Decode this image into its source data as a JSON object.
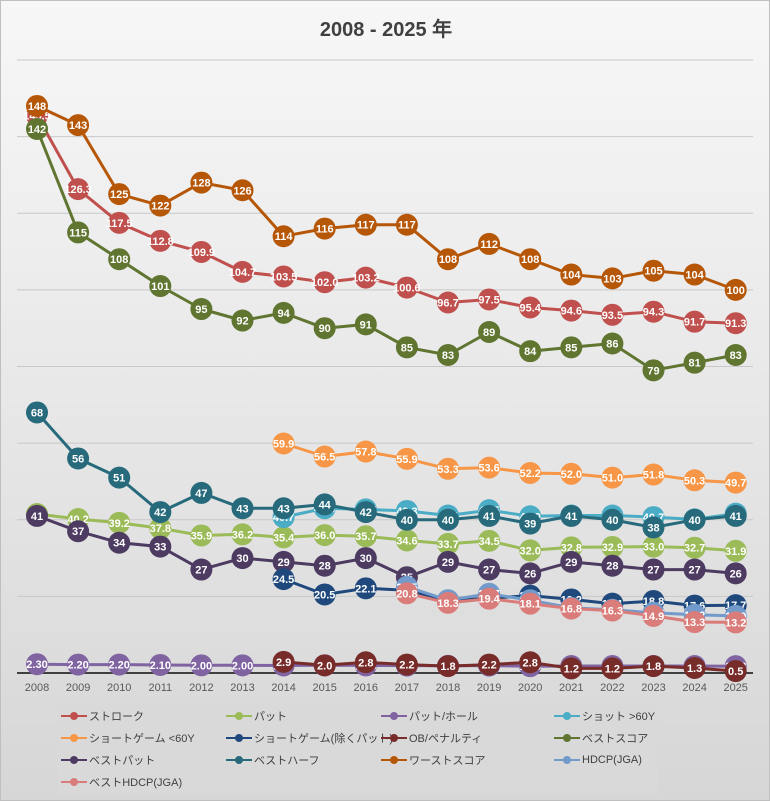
{
  "chart_data": {
    "type": "line",
    "title": "2008 - 2025 年",
    "xlabel": "",
    "ylabel": "",
    "ylim": [
      0,
      160
    ],
    "ytick_step": 20,
    "grid": true,
    "y_tick_labels_visible": false,
    "legend_position": "bottom",
    "categories": [
      "2008",
      "2009",
      "2010",
      "2011",
      "2012",
      "2013",
      "2014",
      "2015",
      "2016",
      "2017",
      "2018",
      "2019",
      "2020",
      "2021",
      "2022",
      "2023",
      "2024",
      "2025"
    ],
    "series": [
      {
        "name": "ストローク",
        "color": "#c0504d",
        "label_format": "1",
        "values": [
          145.5,
          126.3,
          117.5,
          112.8,
          109.9,
          104.7,
          103.5,
          102.0,
          103.2,
          100.6,
          96.7,
          97.5,
          95.4,
          94.6,
          93.5,
          94.3,
          91.7,
          91.3
        ]
      },
      {
        "name": "パット",
        "color": "#9bbb59",
        "label_format": "1",
        "values": [
          41.5,
          40.2,
          39.2,
          37.8,
          35.9,
          36.2,
          35.4,
          36.0,
          35.7,
          34.6,
          33.7,
          34.5,
          32.0,
          32.8,
          32.9,
          33.0,
          32.7,
          31.9
        ]
      },
      {
        "name": "パット/ホール",
        "color": "#8064a2",
        "label_format": "2",
        "values": [
          2.3,
          2.2,
          2.2,
          2.1,
          2.0,
          2.0,
          1.97,
          2.0,
          1.98,
          1.92,
          1.87,
          1.92,
          1.78,
          1.82,
          1.82,
          1.83,
          1.83,
          1.78
        ]
      },
      {
        "name": "ショット >60Y",
        "color": "#4bacc6",
        "label_format": "1",
        "values": [
          null,
          null,
          null,
          null,
          null,
          null,
          40.7,
          43.0,
          42.7,
          42.3,
          41.1,
          42.5,
          40.9,
          41.1,
          41.1,
          40.7,
          40.1,
          41.6
        ]
      },
      {
        "name": "ショートゲーム <60Y",
        "color": "#f79646",
        "label_format": "1",
        "values": [
          null,
          null,
          null,
          null,
          null,
          null,
          59.9,
          56.5,
          57.8,
          55.9,
          53.3,
          53.6,
          52.2,
          52.0,
          51.0,
          51.8,
          50.3,
          49.7
        ]
      },
      {
        "name": "ショートゲーム(除くパット)",
        "color": "#1f497d",
        "label_format": "1",
        "values": [
          null,
          null,
          null,
          null,
          null,
          null,
          24.5,
          20.5,
          22.1,
          21.6,
          18.9,
          19.5,
          20.2,
          19.2,
          18.1,
          18.8,
          17.6,
          17.7
        ]
      },
      {
        "name": "OB/ペナルティ",
        "color": "#772c2a",
        "label_format": "1",
        "values": [
          null,
          null,
          null,
          null,
          null,
          null,
          2.9,
          2.0,
          2.8,
          2.2,
          1.8,
          2.2,
          2.8,
          1.2,
          1.2,
          1.8,
          1.3,
          0.5
        ]
      },
      {
        "name": "ベストスコア",
        "color": "#5f7530",
        "label_format": "0",
        "values": [
          142,
          115,
          108,
          101,
          95,
          92,
          94,
          90,
          91,
          85,
          83,
          89,
          84,
          85,
          86,
          79,
          81,
          83
        ]
      },
      {
        "name": "ベストパット",
        "color": "#4d3b62",
        "label_format": "0",
        "values": [
          41,
          37,
          34,
          33,
          27,
          30,
          29,
          28,
          30,
          25,
          29,
          27,
          26,
          29,
          28,
          27,
          27,
          26
        ]
      },
      {
        "name": "ベストハーフ",
        "color": "#276a7c",
        "label_format": "0",
        "values": [
          68,
          56,
          51,
          42,
          47,
          43,
          43,
          44,
          42,
          40,
          40,
          41,
          39,
          41,
          40,
          38,
          40,
          41
        ]
      },
      {
        "name": "ワーストスコア",
        "color": "#b65708",
        "label_format": "0",
        "values": [
          148,
          143,
          125,
          122,
          128,
          126,
          114,
          116,
          117,
          117,
          108,
          112,
          108,
          104,
          103,
          105,
          104,
          100
        ]
      },
      {
        "name": "HDCP(JGA)",
        "color": "#729aca",
        "label_format": "1",
        "values": [
          null,
          null,
          null,
          null,
          null,
          null,
          null,
          null,
          null,
          22.5,
          19.0,
          20.7,
          19.0,
          17.0,
          16.5,
          15.7,
          15.2,
          14.9
        ]
      },
      {
        "name": "ベストHDCP(JGA)",
        "color": "#da7c7a",
        "label_format": "1",
        "values": [
          null,
          null,
          null,
          null,
          null,
          null,
          null,
          null,
          null,
          20.8,
          18.3,
          19.4,
          18.1,
          16.8,
          16.3,
          14.9,
          13.3,
          13.2
        ]
      }
    ]
  }
}
